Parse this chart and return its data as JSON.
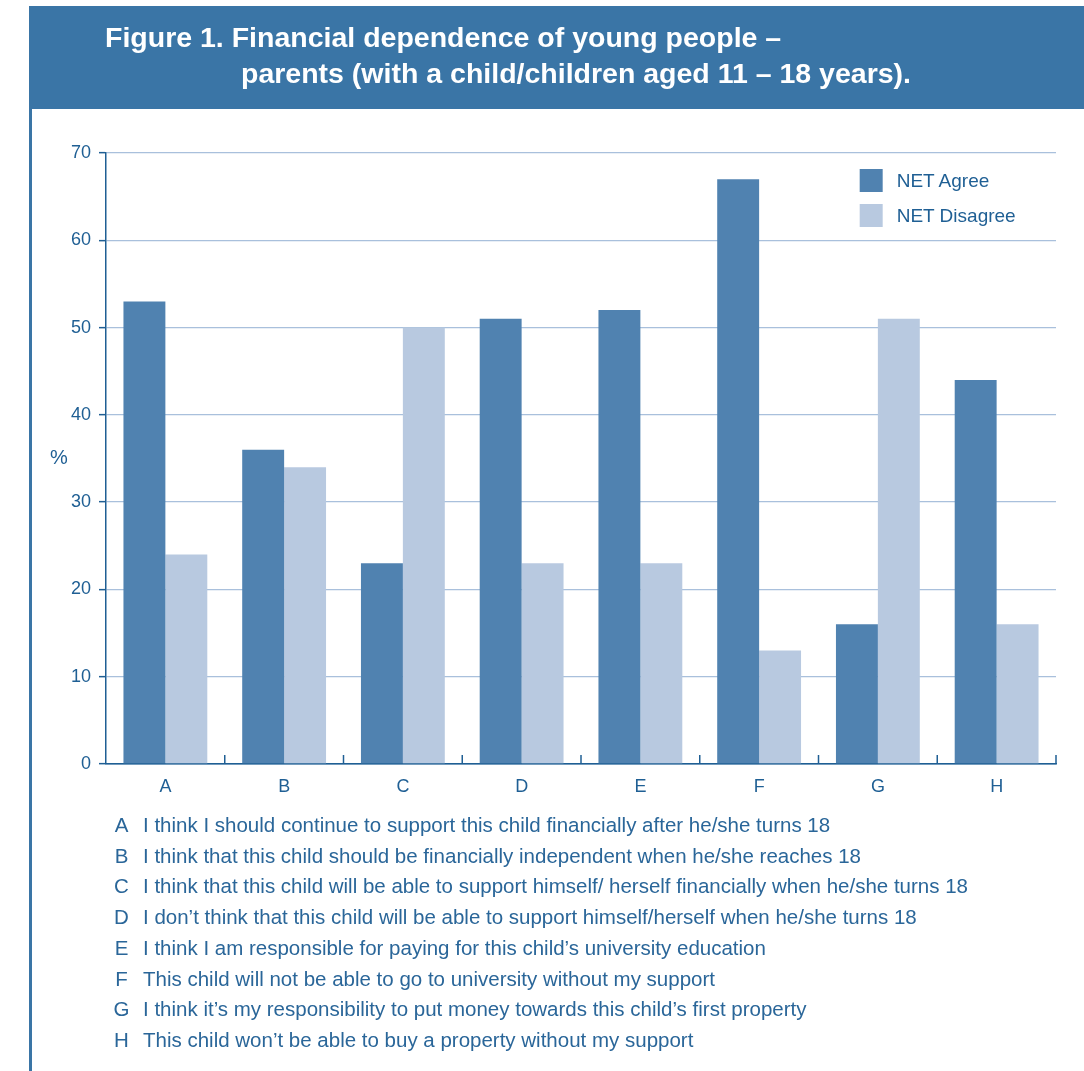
{
  "chart_data": {
    "type": "bar",
    "title": "Figure 1. Financial dependence of young people –\nparents (with a child/children aged 11 – 18 years).",
    "ylabel": "%",
    "categories": [
      "A",
      "B",
      "C",
      "D",
      "E",
      "F",
      "G",
      "H"
    ],
    "series": [
      {
        "name": "NET Agree",
        "color": "#5082b0",
        "values": [
          53,
          36,
          23,
          51,
          52,
          67,
          16,
          44
        ]
      },
      {
        "name": "NET Disagree",
        "color": "#b8c9e0",
        "values": [
          24,
          34,
          50,
          23,
          23,
          13,
          51,
          16
        ]
      }
    ],
    "ylim": [
      0,
      70
    ],
    "yticks": [
      0,
      10,
      20,
      30,
      40,
      50,
      60,
      70
    ],
    "grid": "y",
    "legend": "top right",
    "annotations": [
      "I think I should continue to support this child financially after he/she turns 18",
      "I think that this child should be financially independent when he/she reaches 18",
      "I think that this child will be able to support himself/ herself financially when he/she turns 18",
      "I don’t think that this child will be able to support himself/herself when he/she turns 18",
      "I think I am responsible for paying for this child’s university education",
      "This child will not be able to go to university without my support",
      "I think it’s my responsibility to put money towards this child’s first property",
      "This child won’t be able to buy a property without my support"
    ]
  }
}
